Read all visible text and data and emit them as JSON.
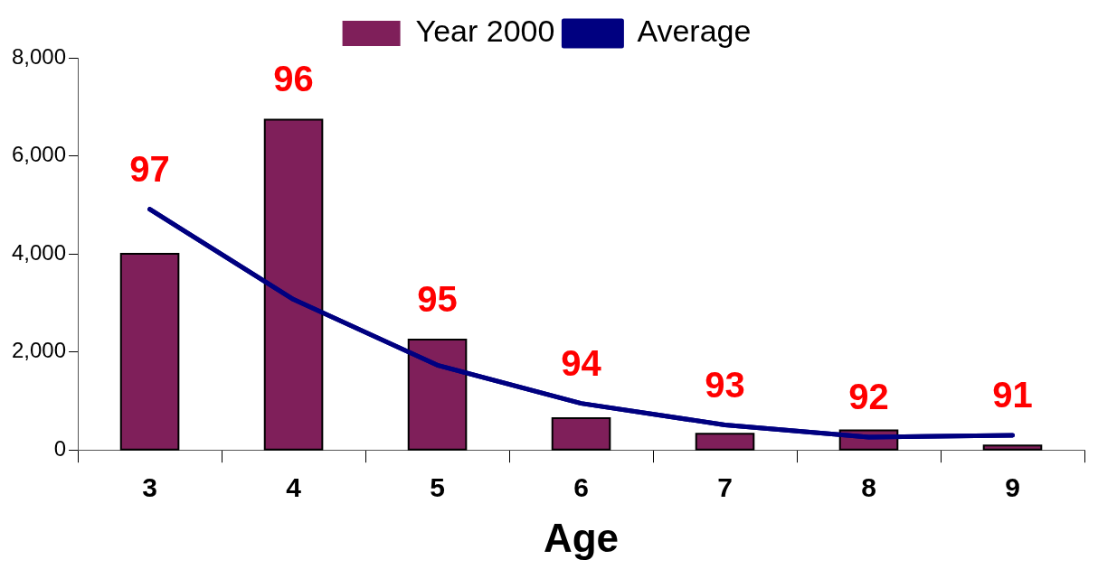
{
  "chart_data": {
    "type": "bar",
    "xlabel": "Age",
    "categories": [
      "3",
      "4",
      "5",
      "6",
      "7",
      "8",
      "9"
    ],
    "series": [
      {
        "name": "Year 2000",
        "color": "#7f1f5a",
        "values": [
          4000,
          6740,
          2250,
          650,
          330,
          400,
          90
        ]
      },
      {
        "name": "Average",
        "type": "line",
        "color": "#000080",
        "values": [
          4910,
          3070,
          1730,
          950,
          510,
          260,
          300
        ]
      }
    ],
    "ylim": [
      0,
      8000
    ],
    "yticks": [
      {
        "value": 0,
        "label": "0"
      },
      {
        "value": 2000,
        "label": "2,000"
      },
      {
        "value": 4000,
        "label": "4,000"
      },
      {
        "value": 6000,
        "label": "6,000"
      },
      {
        "value": 8000,
        "label": "8,000"
      }
    ],
    "grid": false,
    "legend": "top",
    "marker": "none",
    "line_style": "solid",
    "annotations": [
      {
        "text": "97",
        "x": "3",
        "y": 4910
      },
      {
        "text": "96",
        "x": "4",
        "y": 6740
      },
      {
        "text": "95",
        "x": "5",
        "y": 2250
      },
      {
        "text": "94",
        "x": "6",
        "y": 950
      },
      {
        "text": "93",
        "x": "7",
        "y": 510
      },
      {
        "text": "92",
        "x": "8",
        "y": 260
      },
      {
        "text": "91",
        "x": "9",
        "y": 300
      }
    ]
  }
}
